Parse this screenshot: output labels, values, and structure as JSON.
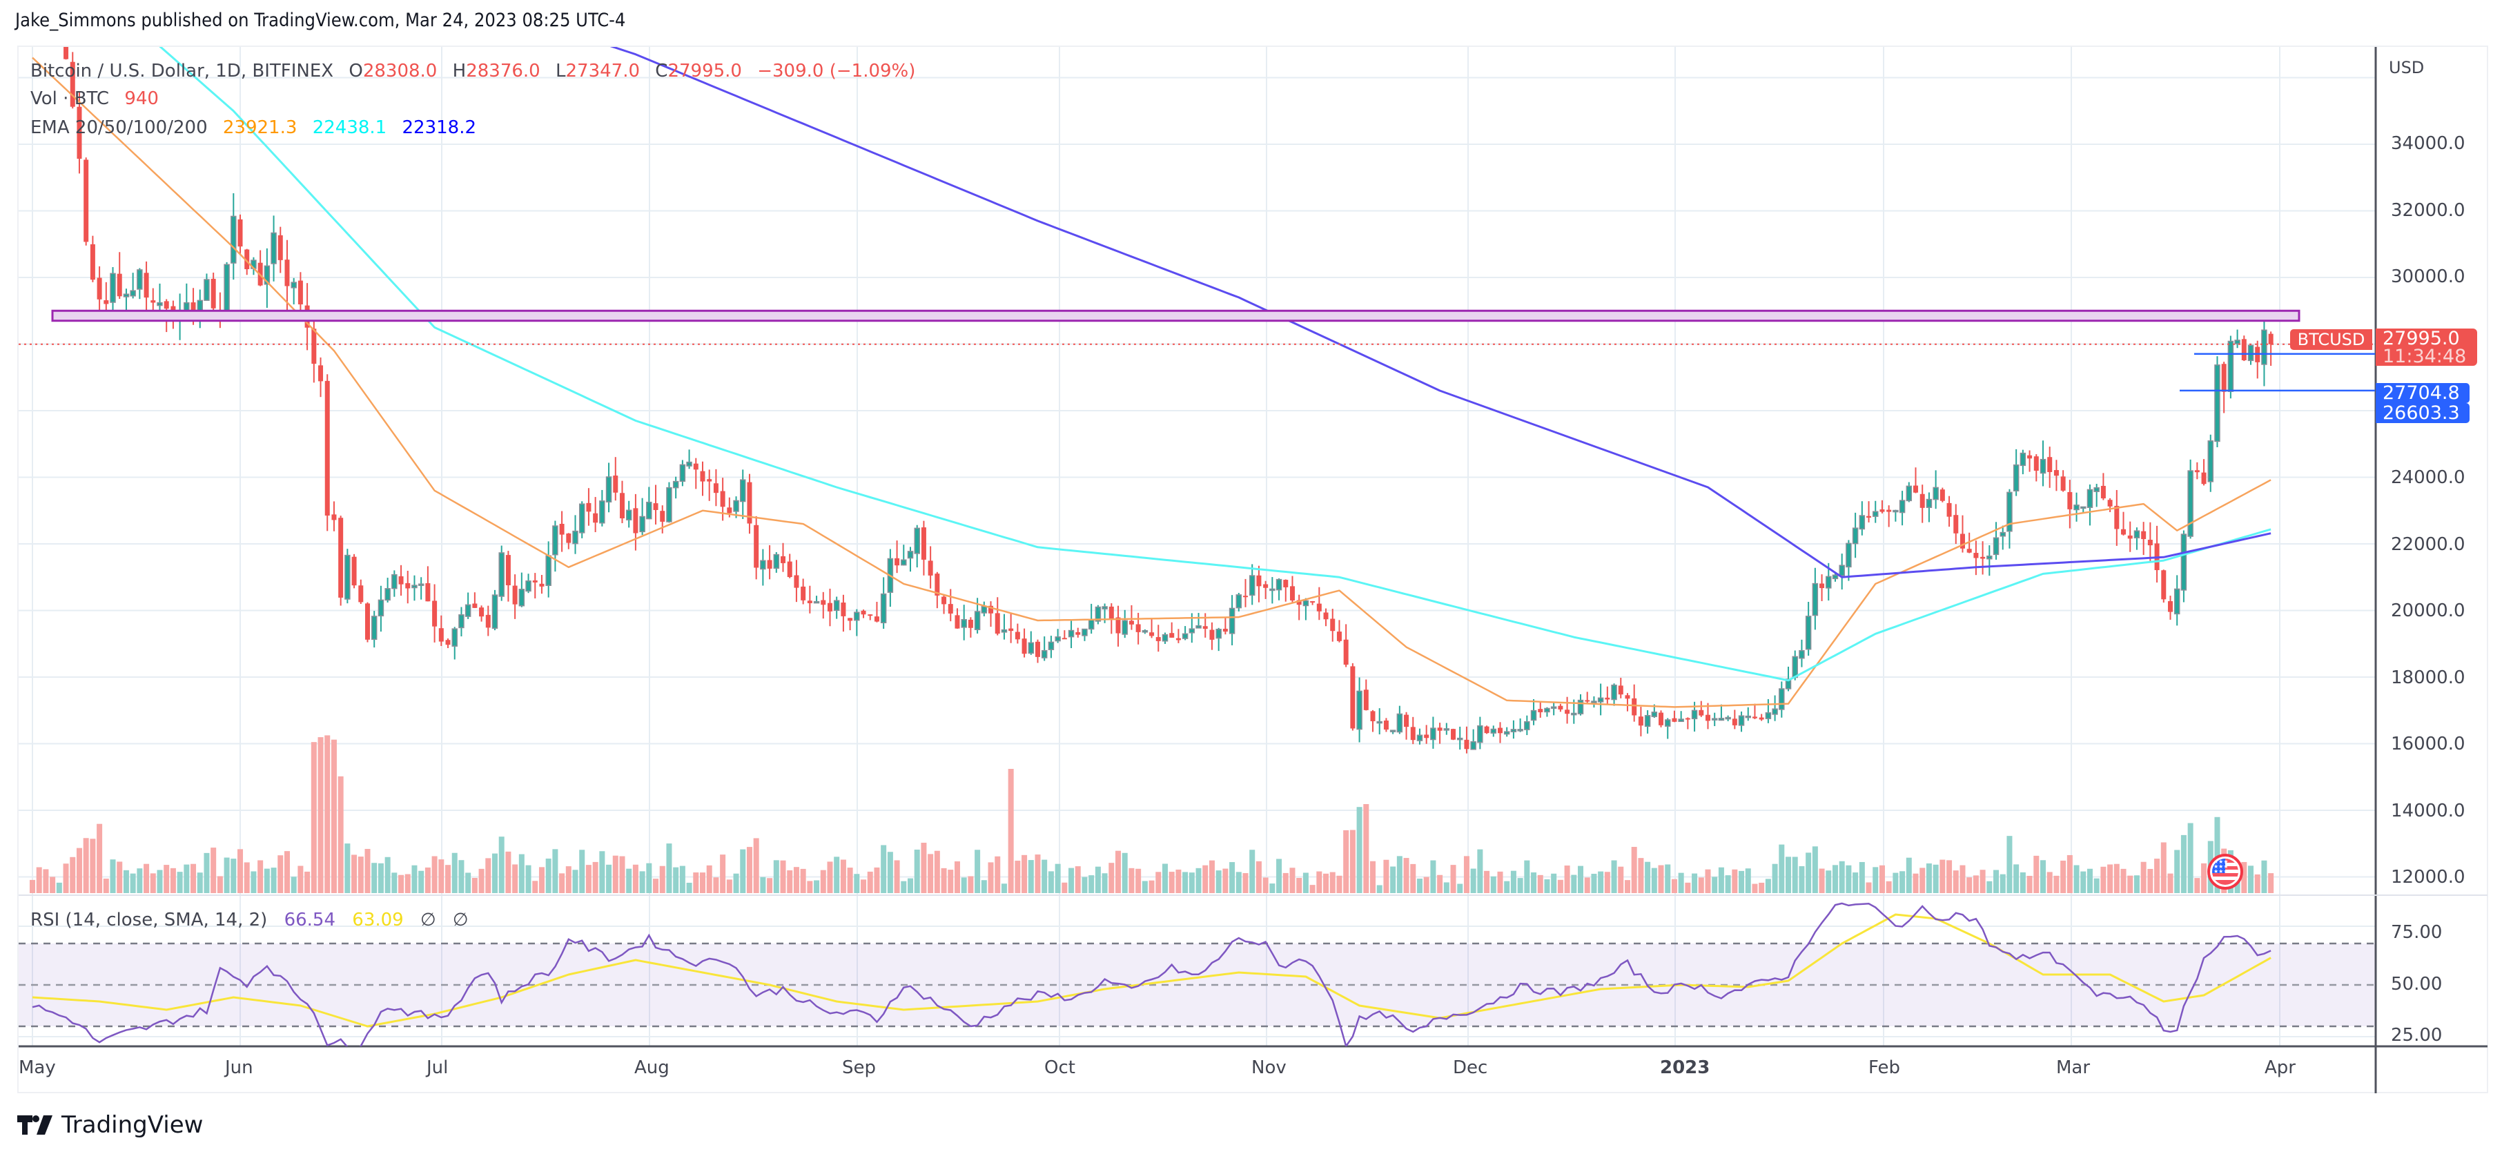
{
  "header": {
    "published": "Jake_Simmons published on TradingView.com, Mar 24, 2023 08:25 UTC-4"
  },
  "legend": {
    "symbol": "Bitcoin / U.S. Dollar, 1D, BITFINEX",
    "o_label": "O",
    "o_value": "28308.0",
    "h_label": "H",
    "h_value": "28376.0",
    "l_label": "L",
    "l_value": "27347.0",
    "c_label": "C",
    "c_value": "27995.0",
    "change": "−309.0 (−1.09%)",
    "vol_label": "Vol · BTC",
    "vol_value": "940",
    "ema_label": "EMA 20/50/100/200",
    "ema20": "23921.3",
    "ema50": "22438.1",
    "ema100": "22318.2"
  },
  "rsi_legend": {
    "label": "RSI (14, close, SMA, 14, 2)",
    "rsi_value": "66.54",
    "sma_value": "63.09",
    "na1": "∅",
    "na2": "∅"
  },
  "price_axis": {
    "currency": "USD",
    "ticks": [
      "34000.0",
      "32000.0",
      "30000.0",
      "24000.0",
      "22000.0",
      "20000.0",
      "18000.0",
      "16000.0",
      "14000.0",
      "12000.0"
    ]
  },
  "rsi_axis": {
    "ticks": [
      "75.00",
      "50.00",
      "25.00"
    ]
  },
  "time_axis": {
    "ticks": [
      "May",
      "Jun",
      "Jul",
      "Aug",
      "Sep",
      "Oct",
      "Nov",
      "Dec",
      "2023",
      "Feb",
      "Mar",
      "Apr"
    ]
  },
  "tags": {
    "symbol": "BTCUSD",
    "last_price": "27995.0",
    "countdown": "11:34:48",
    "level1": "27704.8",
    "level2": "26603.3"
  },
  "branding": {
    "logo_text": "TradingView"
  },
  "colors": {
    "up": "#26a69a",
    "down": "#ef5350",
    "vol_up": "#92d2cc",
    "vol_down": "#f7a9a7",
    "ema20": "#ff9800",
    "ema50": "#00ffff",
    "ema100": "#0000ff",
    "ema200_line": "#5b4cf0",
    "rsi": "#7e57c2",
    "rsi_sma": "#ffeb3b",
    "zone_fill": "#e9d4f0",
    "zone_border": "#9c27b0",
    "level_line": "#2962ff",
    "grid": "#e6edf3"
  },
  "chart_data": {
    "type": "candlestick",
    "title": "Bitcoin / U.S. Dollar, 1D, BITFINEX",
    "xlabel": "",
    "ylabel": "USD",
    "ylim": [
      11500,
      36500
    ],
    "x_ticks": [
      "May",
      "Jun",
      "Jul",
      "Aug",
      "Sep",
      "Oct",
      "Nov",
      "Dec",
      "2023",
      "Feb",
      "Mar",
      "Apr"
    ],
    "y_ticks": [
      12000,
      14000,
      16000,
      18000,
      20000,
      22000,
      24000,
      26000,
      28000,
      30000,
      32000,
      34000
    ],
    "last": {
      "open": 28308.0,
      "high": 28376.0,
      "low": 27347.0,
      "close": 27995.0,
      "change": -309.0,
      "change_pct": -1.09,
      "volume": 940
    },
    "ema": {
      "ema20": 23921.3,
      "ema50": 22438.1,
      "ema100": 22318.2
    },
    "resistance_zone": [
      28700,
      29000
    ],
    "horizontal_levels": [
      27704.8,
      26603.3
    ],
    "close_anchors_day_price": [
      [
        0,
        38400
      ],
      [
        4,
        37600
      ],
      [
        6,
        35500
      ],
      [
        8,
        31000
      ],
      [
        9,
        30000
      ],
      [
        11,
        29000
      ],
      [
        12,
        30000
      ],
      [
        14,
        29500
      ],
      [
        16,
        30100
      ],
      [
        18,
        29200
      ],
      [
        20,
        29300
      ],
      [
        22,
        28700
      ],
      [
        24,
        29100
      ],
      [
        26,
        29600
      ],
      [
        28,
        29000
      ],
      [
        30,
        31700
      ],
      [
        32,
        30500
      ],
      [
        34,
        29800
      ],
      [
        36,
        31300
      ],
      [
        38,
        30000
      ],
      [
        40,
        29300
      ],
      [
        41,
        28600
      ],
      [
        42,
        27700
      ],
      [
        43,
        26600
      ],
      [
        44,
        23000
      ],
      [
        45,
        22500
      ],
      [
        46,
        20400
      ],
      [
        47,
        21800
      ],
      [
        48,
        20700
      ],
      [
        49,
        20300
      ],
      [
        50,
        19000
      ],
      [
        52,
        20500
      ],
      [
        54,
        21100
      ],
      [
        56,
        20900
      ],
      [
        58,
        20700
      ],
      [
        59,
        20200
      ],
      [
        60,
        19300
      ],
      [
        62,
        19000
      ],
      [
        64,
        19900
      ],
      [
        66,
        20100
      ],
      [
        68,
        19600
      ],
      [
        70,
        21600
      ],
      [
        72,
        20300
      ],
      [
        74,
        20700
      ],
      [
        76,
        20500
      ],
      [
        78,
        22400
      ],
      [
        80,
        22000
      ],
      [
        82,
        23300
      ],
      [
        84,
        22800
      ],
      [
        86,
        23900
      ],
      [
        88,
        22900
      ],
      [
        90,
        22600
      ],
      [
        92,
        23200
      ],
      [
        94,
        22900
      ],
      [
        96,
        23900
      ],
      [
        98,
        24400
      ],
      [
        100,
        24100
      ],
      [
        102,
        23300
      ],
      [
        104,
        23200
      ],
      [
        106,
        23800
      ],
      [
        108,
        21200
      ],
      [
        110,
        21400
      ],
      [
        112,
        21600
      ],
      [
        114,
        20900
      ],
      [
        116,
        20200
      ],
      [
        118,
        20000
      ],
      [
        120,
        20300
      ],
      [
        122,
        19800
      ],
      [
        124,
        20100
      ],
      [
        126,
        19800
      ],
      [
        128,
        21400
      ],
      [
        130,
        21700
      ],
      [
        132,
        22400
      ],
      [
        134,
        21100
      ],
      [
        136,
        20200
      ],
      [
        138,
        19700
      ],
      [
        140,
        19500
      ],
      [
        142,
        20200
      ],
      [
        144,
        19200
      ],
      [
        146,
        19500
      ],
      [
        148,
        18900
      ],
      [
        150,
        18800
      ],
      [
        152,
        19200
      ],
      [
        154,
        19400
      ],
      [
        156,
        19300
      ],
      [
        158,
        19700
      ],
      [
        160,
        20100
      ],
      [
        162,
        19500
      ],
      [
        164,
        19500
      ],
      [
        166,
        19200
      ],
      [
        168,
        19100
      ],
      [
        170,
        19000
      ],
      [
        172,
        19300
      ],
      [
        174,
        19400
      ],
      [
        176,
        19100
      ],
      [
        178,
        19300
      ],
      [
        180,
        20500
      ],
      [
        182,
        20800
      ],
      [
        184,
        20600
      ],
      [
        186,
        20800
      ],
      [
        188,
        20300
      ],
      [
        190,
        20100
      ],
      [
        192,
        20200
      ],
      [
        194,
        19400
      ],
      [
        196,
        18300
      ],
      [
        197,
        16600
      ],
      [
        198,
        17500
      ],
      [
        200,
        16800
      ],
      [
        202,
        16500
      ],
      [
        204,
        16700
      ],
      [
        206,
        16300
      ],
      [
        208,
        16300
      ],
      [
        210,
        16500
      ],
      [
        212,
        16200
      ],
      [
        214,
        15800
      ],
      [
        216,
        16400
      ],
      [
        218,
        16500
      ],
      [
        220,
        16200
      ],
      [
        222,
        16600
      ],
      [
        224,
        17000
      ],
      [
        226,
        17100
      ],
      [
        228,
        17100
      ],
      [
        230,
        17100
      ],
      [
        232,
        17300
      ],
      [
        234,
        17200
      ],
      [
        236,
        17800
      ],
      [
        238,
        17400
      ],
      [
        240,
        16700
      ],
      [
        242,
        16800
      ],
      [
        244,
        16700
      ],
      [
        246,
        16800
      ],
      [
        248,
        16900
      ],
      [
        250,
        16800
      ],
      [
        252,
        16600
      ],
      [
        254,
        16600
      ],
      [
        256,
        16700
      ],
      [
        258,
        16900
      ],
      [
        260,
        17200
      ],
      [
        262,
        17900
      ],
      [
        264,
        18900
      ],
      [
        266,
        20900
      ],
      [
        268,
        20800
      ],
      [
        270,
        21200
      ],
      [
        272,
        22600
      ],
      [
        274,
        23000
      ],
      [
        276,
        22700
      ],
      [
        278,
        23100
      ],
      [
        280,
        23700
      ],
      [
        282,
        23300
      ],
      [
        284,
        23500
      ],
      [
        286,
        22800
      ],
      [
        288,
        21800
      ],
      [
        290,
        21800
      ],
      [
        292,
        21700
      ],
      [
        294,
        22200
      ],
      [
        296,
        24400
      ],
      [
        298,
        24600
      ],
      [
        300,
        24300
      ],
      [
        302,
        24200
      ],
      [
        304,
        23300
      ],
      [
        306,
        23200
      ],
      [
        308,
        23500
      ],
      [
        310,
        23100
      ],
      [
        312,
        22300
      ],
      [
        314,
        22400
      ],
      [
        316,
        22100
      ],
      [
        318,
        20300
      ],
      [
        319,
        20100
      ],
      [
        320,
        20600
      ],
      [
        321,
        22200
      ],
      [
        322,
        24200
      ],
      [
        323,
        24400
      ],
      [
        324,
        24100
      ],
      [
        325,
        25100
      ],
      [
        326,
        27400
      ],
      [
        327,
        26900
      ],
      [
        328,
        28000
      ],
      [
        329,
        28400
      ],
      [
        330,
        27800
      ],
      [
        331,
        28100
      ],
      [
        332,
        27500
      ],
      [
        333,
        28300
      ],
      [
        334,
        27995
      ]
    ],
    "ema20_anchors": [
      [
        0,
        36600
      ],
      [
        30,
        30900
      ],
      [
        45,
        27800
      ],
      [
        60,
        23600
      ],
      [
        80,
        21300
      ],
      [
        100,
        23000
      ],
      [
        115,
        22600
      ],
      [
        130,
        20800
      ],
      [
        150,
        19700
      ],
      [
        180,
        19800
      ],
      [
        195,
        20600
      ],
      [
        205,
        18900
      ],
      [
        220,
        17300
      ],
      [
        245,
        17100
      ],
      [
        262,
        17200
      ],
      [
        275,
        20800
      ],
      [
        295,
        22600
      ],
      [
        315,
        23200
      ],
      [
        320,
        22400
      ],
      [
        334,
        23921
      ]
    ],
    "ema50_anchors": [
      [
        0,
        40300
      ],
      [
        30,
        35000
      ],
      [
        60,
        28500
      ],
      [
        90,
        25700
      ],
      [
        120,
        23700
      ],
      [
        150,
        21900
      ],
      [
        180,
        21300
      ],
      [
        195,
        21000
      ],
      [
        230,
        19200
      ],
      [
        262,
        17900
      ],
      [
        275,
        19300
      ],
      [
        300,
        21100
      ],
      [
        318,
        21500
      ],
      [
        334,
        22438
      ]
    ],
    "ema100_anchors": [
      [
        0,
        44300
      ],
      [
        60,
        38700
      ],
      [
        90,
        36700
      ],
      [
        120,
        34200
      ],
      [
        150,
        31700
      ],
      [
        180,
        29400
      ],
      [
        210,
        26600
      ],
      [
        250,
        23700
      ],
      [
        270,
        21000
      ],
      [
        290,
        21300
      ],
      [
        318,
        21600
      ],
      [
        334,
        22318
      ]
    ],
    "rsi_anchors": [
      [
        0,
        40
      ],
      [
        6,
        33
      ],
      [
        10,
        22
      ],
      [
        14,
        27
      ],
      [
        18,
        30
      ],
      [
        26,
        38
      ],
      [
        28,
        57
      ],
      [
        32,
        51
      ],
      [
        35,
        60
      ],
      [
        38,
        50
      ],
      [
        42,
        38
      ],
      [
        44,
        22
      ],
      [
        46,
        22
      ],
      [
        48,
        17
      ],
      [
        50,
        28
      ],
      [
        53,
        40
      ],
      [
        56,
        37
      ],
      [
        60,
        34
      ],
      [
        62,
        36
      ],
      [
        66,
        53
      ],
      [
        68,
        57
      ],
      [
        70,
        43
      ],
      [
        74,
        52
      ],
      [
        78,
        58
      ],
      [
        80,
        73
      ],
      [
        84,
        66
      ],
      [
        86,
        63
      ],
      [
        88,
        65
      ],
      [
        92,
        72
      ],
      [
        96,
        64
      ],
      [
        100,
        60
      ],
      [
        102,
        63
      ],
      [
        104,
        62
      ],
      [
        108,
        45
      ],
      [
        112,
        48
      ],
      [
        118,
        37
      ],
      [
        124,
        36
      ],
      [
        126,
        33
      ],
      [
        130,
        50
      ],
      [
        134,
        43
      ],
      [
        140,
        30
      ],
      [
        146,
        41
      ],
      [
        150,
        45
      ],
      [
        156,
        44
      ],
      [
        160,
        52
      ],
      [
        164,
        47
      ],
      [
        170,
        58
      ],
      [
        174,
        54
      ],
      [
        178,
        66
      ],
      [
        180,
        73
      ],
      [
        184,
        69
      ],
      [
        186,
        59
      ],
      [
        190,
        63
      ],
      [
        194,
        44
      ],
      [
        196,
        21
      ],
      [
        198,
        33
      ],
      [
        202,
        36
      ],
      [
        206,
        26
      ],
      [
        210,
        34
      ],
      [
        216,
        39
      ],
      [
        222,
        49
      ],
      [
        228,
        46
      ],
      [
        234,
        52
      ],
      [
        238,
        60
      ],
      [
        242,
        47
      ],
      [
        248,
        50
      ],
      [
        252,
        45
      ],
      [
        256,
        49
      ],
      [
        262,
        55
      ],
      [
        266,
        77
      ],
      [
        270,
        90
      ],
      [
        272,
        88
      ],
      [
        274,
        89
      ],
      [
        278,
        78
      ],
      [
        282,
        86
      ],
      [
        284,
        83
      ],
      [
        288,
        84
      ],
      [
        290,
        81
      ],
      [
        292,
        70
      ],
      [
        296,
        62
      ],
      [
        300,
        66
      ],
      [
        304,
        58
      ],
      [
        308,
        44
      ],
      [
        312,
        45
      ],
      [
        316,
        38
      ],
      [
        318,
        27
      ],
      [
        320,
        30
      ],
      [
        324,
        63
      ],
      [
        328,
        74
      ],
      [
        330,
        71
      ],
      [
        332,
        65
      ],
      [
        334,
        66.54
      ]
    ],
    "rsi_sma_anchors": [
      [
        0,
        44
      ],
      [
        10,
        42
      ],
      [
        20,
        38
      ],
      [
        30,
        44
      ],
      [
        40,
        40
      ],
      [
        50,
        30
      ],
      [
        60,
        36
      ],
      [
        70,
        44
      ],
      [
        80,
        55
      ],
      [
        90,
        62
      ],
      [
        100,
        56
      ],
      [
        110,
        50
      ],
      [
        120,
        42
      ],
      [
        130,
        38
      ],
      [
        140,
        40
      ],
      [
        150,
        42
      ],
      [
        160,
        48
      ],
      [
        170,
        52
      ],
      [
        180,
        56
      ],
      [
        190,
        54
      ],
      [
        198,
        40
      ],
      [
        210,
        34
      ],
      [
        222,
        41
      ],
      [
        234,
        48
      ],
      [
        246,
        50
      ],
      [
        256,
        49
      ],
      [
        262,
        52
      ],
      [
        270,
        70
      ],
      [
        278,
        84
      ],
      [
        284,
        82
      ],
      [
        292,
        70
      ],
      [
        300,
        55
      ],
      [
        310,
        55
      ],
      [
        318,
        42
      ],
      [
        324,
        45
      ],
      [
        334,
        63.09
      ]
    ]
  }
}
